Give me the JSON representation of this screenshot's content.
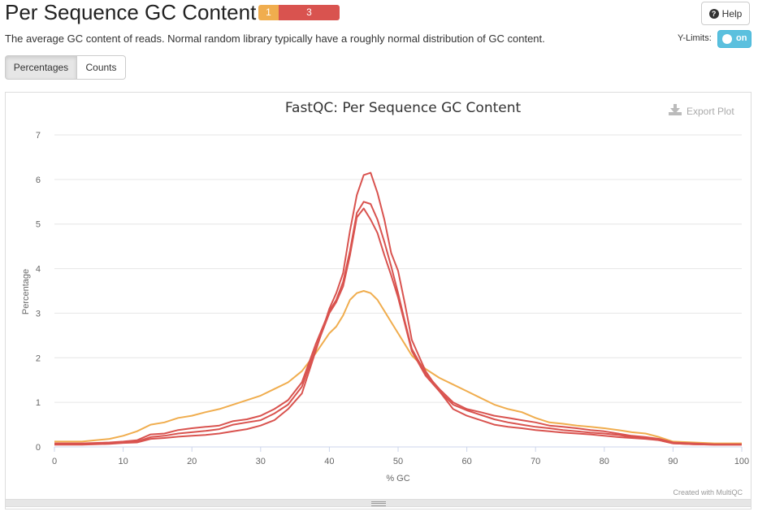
{
  "header": {
    "title": "Per Sequence GC Content",
    "status_warn": "1",
    "status_fail": "3",
    "help_label": "Help"
  },
  "description": "The average GC content of reads. Normal random library typically have a roughly normal distribution of GC content.",
  "ylimits": {
    "label": "Y-Limits:",
    "state": "on"
  },
  "tabs": [
    {
      "label": "Percentages",
      "active": true
    },
    {
      "label": "Counts",
      "active": false
    }
  ],
  "export_label": "Export Plot",
  "credit": "Created with MultiQC",
  "colors": {
    "warn": "#f0ad4e",
    "fail": "#d9534f",
    "toggle": "#5bc0de"
  },
  "chart_data": {
    "type": "line",
    "title": "FastQC: Per Sequence GC Content",
    "xlabel": "% GC",
    "ylabel": "Percentage",
    "xlim": [
      0,
      100
    ],
    "ylim": [
      0,
      7
    ],
    "xticks": [
      0,
      10,
      20,
      30,
      40,
      50,
      60,
      70,
      80,
      90,
      100
    ],
    "yticks": [
      0,
      1,
      2,
      3,
      4,
      5,
      6,
      7
    ],
    "grid": true,
    "x": [
      0,
      4,
      8,
      10,
      12,
      14,
      16,
      18,
      20,
      22,
      24,
      26,
      28,
      30,
      32,
      34,
      36,
      38,
      40,
      41,
      42,
      43,
      44,
      45,
      46,
      47,
      48,
      49,
      50,
      51,
      52,
      54,
      56,
      58,
      60,
      62,
      64,
      66,
      68,
      70,
      72,
      74,
      76,
      78,
      80,
      82,
      84,
      86,
      88,
      90,
      93,
      96,
      100
    ],
    "series": [
      {
        "color": "#f0ad4e",
        "values": [
          0.12,
          0.12,
          0.18,
          0.25,
          0.35,
          0.5,
          0.55,
          0.65,
          0.7,
          0.78,
          0.85,
          0.95,
          1.05,
          1.15,
          1.3,
          1.45,
          1.7,
          2.1,
          2.55,
          2.7,
          2.95,
          3.3,
          3.45,
          3.5,
          3.45,
          3.3,
          3.05,
          2.8,
          2.55,
          2.3,
          2.05,
          1.75,
          1.55,
          1.4,
          1.25,
          1.1,
          0.95,
          0.85,
          0.78,
          0.65,
          0.55,
          0.52,
          0.48,
          0.45,
          0.42,
          0.38,
          0.33,
          0.3,
          0.22,
          0.12,
          0.1,
          0.08,
          0.08
        ]
      },
      {
        "color": "#d9534f",
        "values": [
          0.08,
          0.08,
          0.1,
          0.12,
          0.15,
          0.28,
          0.3,
          0.38,
          0.42,
          0.45,
          0.48,
          0.58,
          0.62,
          0.7,
          0.85,
          1.05,
          1.45,
          2.3,
          3.05,
          3.3,
          3.7,
          4.4,
          5.25,
          5.5,
          5.45,
          5.1,
          4.6,
          4.05,
          3.45,
          2.8,
          2.2,
          1.65,
          1.3,
          1.0,
          0.85,
          0.78,
          0.7,
          0.65,
          0.6,
          0.55,
          0.48,
          0.45,
          0.42,
          0.38,
          0.35,
          0.3,
          0.25,
          0.22,
          0.18,
          0.1,
          0.08,
          0.06,
          0.06
        ]
      },
      {
        "color": "#d9534f",
        "values": [
          0.06,
          0.06,
          0.08,
          0.1,
          0.12,
          0.22,
          0.25,
          0.3,
          0.33,
          0.36,
          0.4,
          0.5,
          0.55,
          0.6,
          0.75,
          0.95,
          1.35,
          2.2,
          3.0,
          3.25,
          3.6,
          4.3,
          5.15,
          5.35,
          5.1,
          4.8,
          4.3,
          3.85,
          3.35,
          2.75,
          2.15,
          1.6,
          1.25,
          0.95,
          0.82,
          0.72,
          0.62,
          0.55,
          0.5,
          0.45,
          0.42,
          0.38,
          0.35,
          0.32,
          0.3,
          0.27,
          0.22,
          0.2,
          0.15,
          0.08,
          0.06,
          0.05,
          0.05
        ]
      },
      {
        "color": "#d9534f",
        "values": [
          0.05,
          0.05,
          0.07,
          0.09,
          0.1,
          0.18,
          0.2,
          0.23,
          0.25,
          0.27,
          0.3,
          0.35,
          0.4,
          0.48,
          0.6,
          0.85,
          1.2,
          2.15,
          3.1,
          3.45,
          3.9,
          4.85,
          5.65,
          6.1,
          6.15,
          5.7,
          5.1,
          4.35,
          3.95,
          3.2,
          2.4,
          1.7,
          1.25,
          0.85,
          0.7,
          0.6,
          0.5,
          0.45,
          0.42,
          0.38,
          0.35,
          0.32,
          0.3,
          0.28,
          0.25,
          0.22,
          0.2,
          0.18,
          0.15,
          0.08,
          0.06,
          0.05,
          0.05
        ]
      }
    ]
  }
}
